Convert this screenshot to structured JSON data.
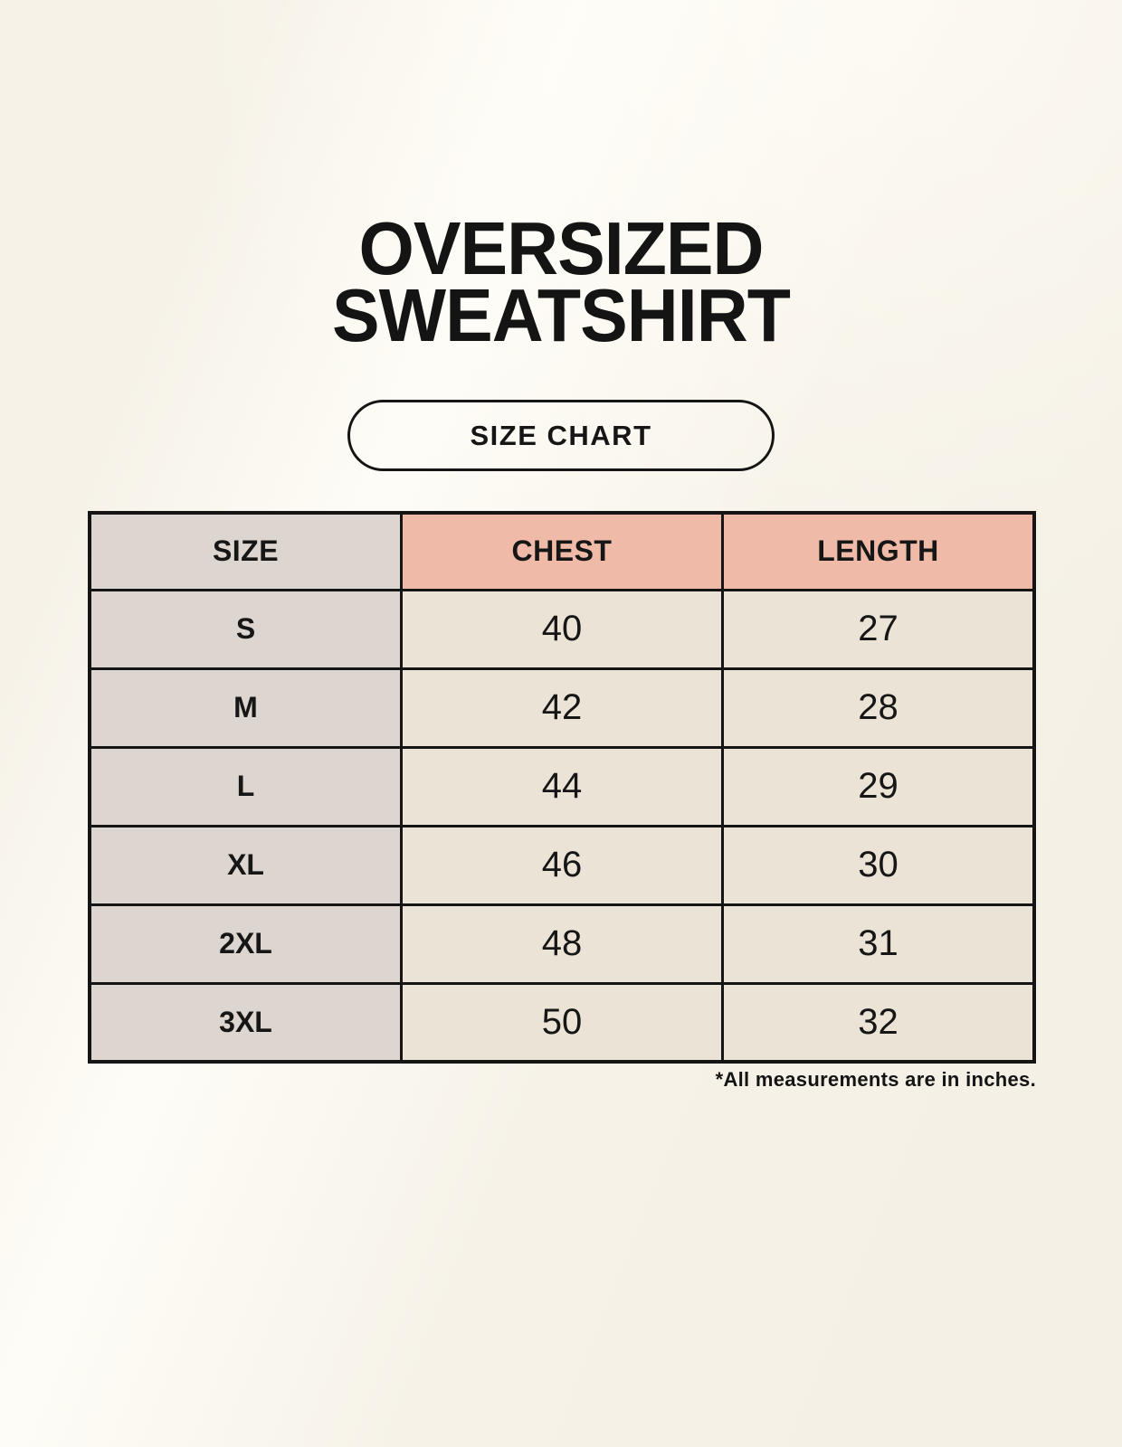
{
  "page": {
    "title_line1": "OVERSIZED",
    "title_line2": "SWEATSHIRT",
    "badge_label": "SIZE CHART",
    "footnote": "*All measurements are in inches."
  },
  "chart_data": {
    "type": "table",
    "title": "OVERSIZED SWEATSHIRT",
    "subtitle": "SIZE CHART",
    "columns": [
      "SIZE",
      "CHEST",
      "LENGTH"
    ],
    "rows": [
      {
        "size": "S",
        "chest": 40,
        "length": 27
      },
      {
        "size": "M",
        "chest": 42,
        "length": 28
      },
      {
        "size": "L",
        "chest": 44,
        "length": 29
      },
      {
        "size": "XL",
        "chest": 46,
        "length": 30
      },
      {
        "size": "2XL",
        "chest": 48,
        "length": 31
      },
      {
        "size": "3XL",
        "chest": 50,
        "length": 32
      }
    ],
    "units": "inches",
    "note": "*All measurements are in inches."
  },
  "colors": {
    "background": "#f6f2e8",
    "size_column_bg": "#ddd6d0",
    "header_accent_bg": "#efbba8",
    "value_cell_bg": "#eae3d6",
    "border": "#151515",
    "text": "#161616"
  }
}
